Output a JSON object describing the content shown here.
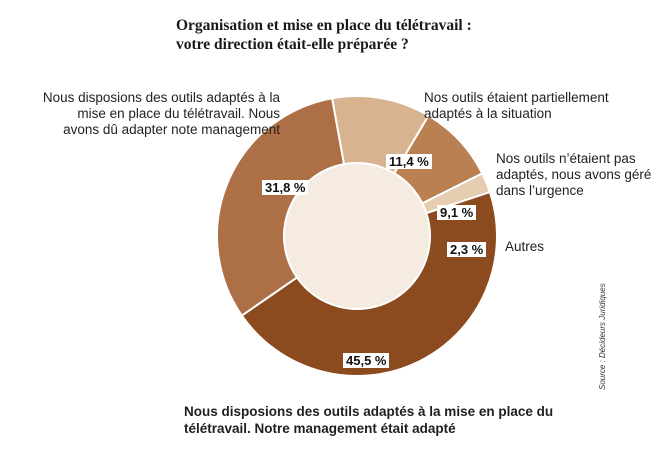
{
  "title_line1": "Organisation et mise en place du télétravail :",
  "title_line2": "votre direction était-elle préparée ?",
  "source": "Source : Décideurs Juridiques",
  "chart_data": {
    "type": "pie",
    "donut": true,
    "title": "Organisation et mise en place du télétravail : votre direction était-elle préparée ?",
    "slices": [
      {
        "label": "Nos outils étaient partiellement adaptés à la situation",
        "value": 11.4,
        "value_label": "11,4 %",
        "color": "#d7b48f"
      },
      {
        "label": "Nos outils n’étaient pas adaptés, nous avons géré dans l’urgence",
        "value": 9.1,
        "value_label": "9,1 %",
        "color": "#bb8052"
      },
      {
        "label": "Autres",
        "value": 2.3,
        "value_label": "2,3 %",
        "color": "#e6cdb0"
      },
      {
        "label": "Nous disposions des outils adaptés à la mise en place du télétravail. Notre management était adapté",
        "value": 45.5,
        "value_label": "45,5 %",
        "color": "#8b4b1e"
      },
      {
        "label": "Nous disposions des outils adaptés à la mise en place du télétravail. Nous avons dû adapter note management",
        "value": 31.8,
        "value_label": "31,8 %",
        "color": "#ad7046"
      }
    ],
    "hole_color": "#f6ebe1"
  }
}
